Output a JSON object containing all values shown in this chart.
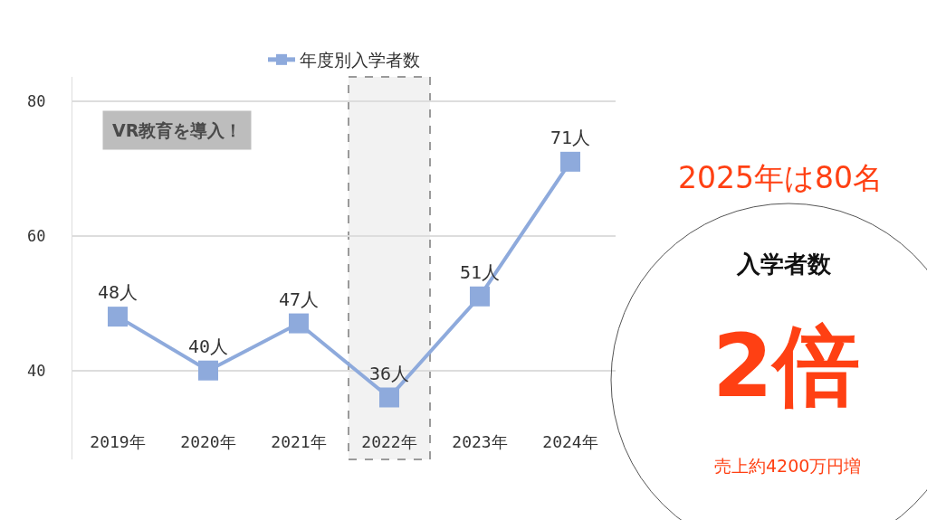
{
  "chart_data": {
    "type": "line",
    "x": [
      2019,
      2020,
      2021,
      2022,
      2023,
      2024
    ],
    "series": [
      {
        "name": "年度別入学者数",
        "color": "#8eaadc",
        "values": [
          48,
          40,
          47,
          36,
          51,
          71
        ],
        "value_labels": [
          "48人",
          "40人",
          "47人",
          "36人",
          "51人",
          "71人"
        ]
      }
    ],
    "xlim": [
      2018.5,
      2024.5
    ],
    "xticks": [
      {
        "value": 2019,
        "label": "2019年"
      },
      {
        "value": 2020,
        "label": "2020年"
      },
      {
        "value": 2021,
        "label": "2021年"
      },
      {
        "value": 2022,
        "label": "2022年"
      },
      {
        "value": 2023,
        "label": "2023年"
      },
      {
        "value": 2024,
        "label": "2024年"
      }
    ],
    "ylim": [
      26.8,
      83.6
    ],
    "yticks": [
      40,
      60,
      80
    ],
    "grid": "y",
    "legend": "top",
    "marker": "square",
    "line_style": "solid",
    "bands": [
      {
        "axis": "x",
        "from": 2021.55,
        "to": 2022.45,
        "color": "#f2f2f2"
      }
    ],
    "annotations": [
      "VR教育を導入！",
      "2025年は80名",
      "入学者数",
      "2倍",
      "売上約4200万円増"
    ]
  }
}
